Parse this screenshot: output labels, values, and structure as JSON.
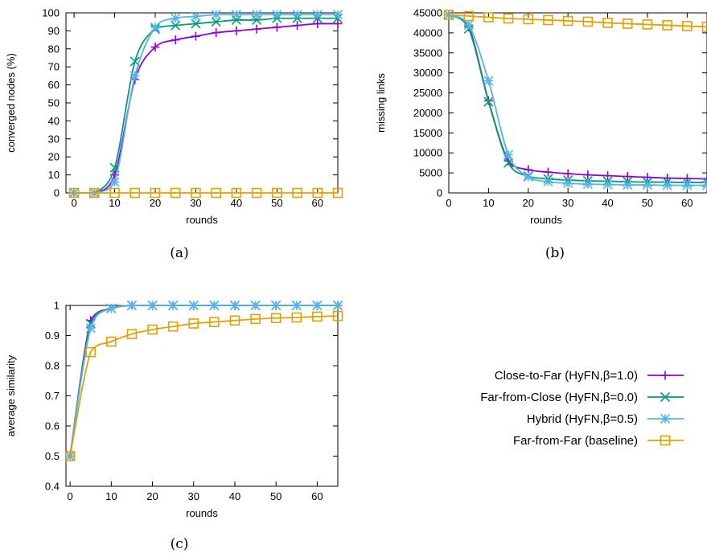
{
  "chart_data": [
    {
      "type": "line",
      "caption": "(a)",
      "xlabel": "rounds",
      "ylabel": "converged nodes (%)",
      "xlim": [
        -2,
        65
      ],
      "ylim": [
        0,
        100
      ],
      "xticks": [
        0,
        10,
        20,
        30,
        40,
        50,
        60
      ],
      "yticks": [
        0,
        10,
        20,
        30,
        40,
        50,
        60,
        70,
        80,
        90,
        100
      ],
      "grid": false,
      "series": [
        {
          "name": "Close-to-Far (HyFN,β=1.0)",
          "color": "#9400d3",
          "marker": "plus",
          "x": [
            0,
            5,
            10,
            15,
            20,
            25,
            30,
            35,
            40,
            45,
            50,
            55,
            60,
            65
          ],
          "y": [
            0,
            0,
            10,
            63,
            81,
            85,
            87,
            89,
            90,
            91,
            92,
            93,
            94,
            94
          ]
        },
        {
          "name": "Far-from-Close (HyFN,β=0.0)",
          "color": "#009e73",
          "marker": "x",
          "x": [
            0,
            5,
            10,
            15,
            20,
            25,
            30,
            35,
            40,
            45,
            50,
            55,
            60,
            65
          ],
          "y": [
            0,
            0,
            14,
            73,
            91,
            93,
            94,
            95,
            96,
            96,
            97,
            97,
            97,
            97
          ]
        },
        {
          "name": "Hybrid (HyFN,β=0.5)",
          "color": "#56b4e9",
          "marker": "star",
          "x": [
            0,
            5,
            10,
            15,
            20,
            25,
            30,
            35,
            40,
            45,
            50,
            55,
            60,
            65
          ],
          "y": [
            0,
            0,
            6,
            65,
            92,
            97,
            98,
            99,
            99,
            99,
            99,
            99,
            99,
            99
          ]
        },
        {
          "name": "Far-from-Far (baseline)",
          "color": "#e69f00",
          "marker": "square",
          "x": [
            0,
            5,
            10,
            15,
            20,
            25,
            30,
            35,
            40,
            45,
            50,
            55,
            60,
            65
          ],
          "y": [
            0,
            0,
            0,
            0,
            0,
            0,
            0,
            0,
            0,
            0,
            0,
            0,
            0,
            0
          ]
        }
      ]
    },
    {
      "type": "line",
      "caption": "(b)",
      "xlabel": "rounds",
      "ylabel": "missing links",
      "xlim": [
        0,
        65
      ],
      "ylim": [
        0,
        45000
      ],
      "xticks": [
        0,
        10,
        20,
        30,
        40,
        50,
        60
      ],
      "yticks": [
        0,
        5000,
        10000,
        15000,
        20000,
        25000,
        30000,
        35000,
        40000,
        45000
      ],
      "grid": false,
      "series": [
        {
          "name": "Close-to-Far (HyFN,β=1.0)",
          "color": "#9400d3",
          "marker": "plus",
          "x": [
            0,
            5,
            10,
            15,
            20,
            25,
            30,
            35,
            40,
            45,
            50,
            55,
            60,
            65
          ],
          "y": [
            44500,
            41500,
            23000,
            8000,
            5800,
            5200,
            4800,
            4500,
            4300,
            4100,
            3900,
            3700,
            3600,
            3500
          ]
        },
        {
          "name": "Far-from-Close (HyFN,β=0.0)",
          "color": "#009e73",
          "marker": "x",
          "x": [
            0,
            5,
            10,
            15,
            20,
            25,
            30,
            35,
            40,
            45,
            50,
            55,
            60,
            65
          ],
          "y": [
            44500,
            41000,
            22800,
            7500,
            4200,
            3500,
            3200,
            3000,
            2900,
            2800,
            2700,
            2700,
            2600,
            2600
          ]
        },
        {
          "name": "Hybrid (HyFN,β=0.5)",
          "color": "#56b4e9",
          "marker": "star",
          "x": [
            0,
            5,
            10,
            15,
            20,
            25,
            30,
            35,
            40,
            45,
            50,
            55,
            60,
            65
          ],
          "y": [
            44500,
            42000,
            28000,
            9500,
            4000,
            2800,
            2400,
            2200,
            2100,
            2000,
            2000,
            1900,
            1900,
            1900
          ]
        },
        {
          "name": "Far-from-Far (baseline)",
          "color": "#e69f00",
          "marker": "square",
          "x": [
            0,
            5,
            10,
            15,
            20,
            25,
            30,
            35,
            40,
            45,
            50,
            55,
            60,
            65
          ],
          "y": [
            44500,
            44200,
            43900,
            43600,
            43400,
            43200,
            43000,
            42800,
            42500,
            42300,
            42100,
            41900,
            41700,
            41500
          ]
        }
      ]
    },
    {
      "type": "line",
      "caption": "(c)",
      "xlabel": "rounds",
      "ylabel": "average similarity",
      "xlim": [
        -1,
        65
      ],
      "ylim": [
        0.4,
        1.0
      ],
      "xticks": [
        0,
        10,
        20,
        30,
        40,
        50,
        60
      ],
      "yticks": [
        0.4,
        0.5,
        0.6,
        0.7,
        0.8,
        0.9,
        1.0
      ],
      "ytick_labels": [
        "0.4",
        "0.5",
        "0.6",
        "0.7",
        "0.8",
        "0.9",
        "1"
      ],
      "grid": false,
      "series": [
        {
          "name": "Close-to-Far (HyFN,β=1.0)",
          "color": "#9400d3",
          "marker": "plus",
          "x": [
            0,
            5,
            10,
            15,
            20,
            25,
            30,
            35,
            40,
            45,
            50,
            55,
            60,
            65
          ],
          "y": [
            0.5,
            0.95,
            0.99,
            1.0,
            1.0,
            1.0,
            1.0,
            1.0,
            1.0,
            1.0,
            1.0,
            1.0,
            1.0,
            1.0
          ]
        },
        {
          "name": "Far-from-Close (HyFN,β=0.0)",
          "color": "#009e73",
          "marker": "x",
          "x": [
            0,
            5,
            10,
            15,
            20,
            25,
            30,
            35,
            40,
            45,
            50,
            55,
            60,
            65
          ],
          "y": [
            0.5,
            0.94,
            0.99,
            1.0,
            1.0,
            1.0,
            1.0,
            1.0,
            1.0,
            1.0,
            1.0,
            1.0,
            1.0,
            1.0
          ]
        },
        {
          "name": "Hybrid (HyFN,β=0.5)",
          "color": "#56b4e9",
          "marker": "star",
          "x": [
            0,
            5,
            10,
            15,
            20,
            25,
            30,
            35,
            40,
            45,
            50,
            55,
            60,
            65
          ],
          "y": [
            0.5,
            0.925,
            0.99,
            1.0,
            1.0,
            1.0,
            1.0,
            1.0,
            1.0,
            1.0,
            1.0,
            1.0,
            1.0,
            1.0
          ]
        },
        {
          "name": "Far-from-Far (baseline)",
          "color": "#e69f00",
          "marker": "square",
          "x": [
            0,
            5,
            10,
            15,
            20,
            25,
            30,
            35,
            40,
            45,
            50,
            55,
            60,
            65
          ],
          "y": [
            0.5,
            0.845,
            0.88,
            0.905,
            0.92,
            0.93,
            0.94,
            0.945,
            0.95,
            0.955,
            0.958,
            0.96,
            0.963,
            0.965
          ]
        }
      ]
    }
  ],
  "legend": {
    "placement": "right of panel (c)",
    "entries": [
      {
        "label": "Close-to-Far (HyFN,β=1.0)",
        "color": "#9400d3",
        "marker": "plus"
      },
      {
        "label": "Far-from-Close (HyFN,β=0.0)",
        "color": "#009e73",
        "marker": "x"
      },
      {
        "label": "Hybrid (HyFN,β=0.5)",
        "color": "#56b4e9",
        "marker": "star"
      },
      {
        "label": "Far-from-Far (baseline)",
        "color": "#e69f00",
        "marker": "square"
      }
    ]
  }
}
